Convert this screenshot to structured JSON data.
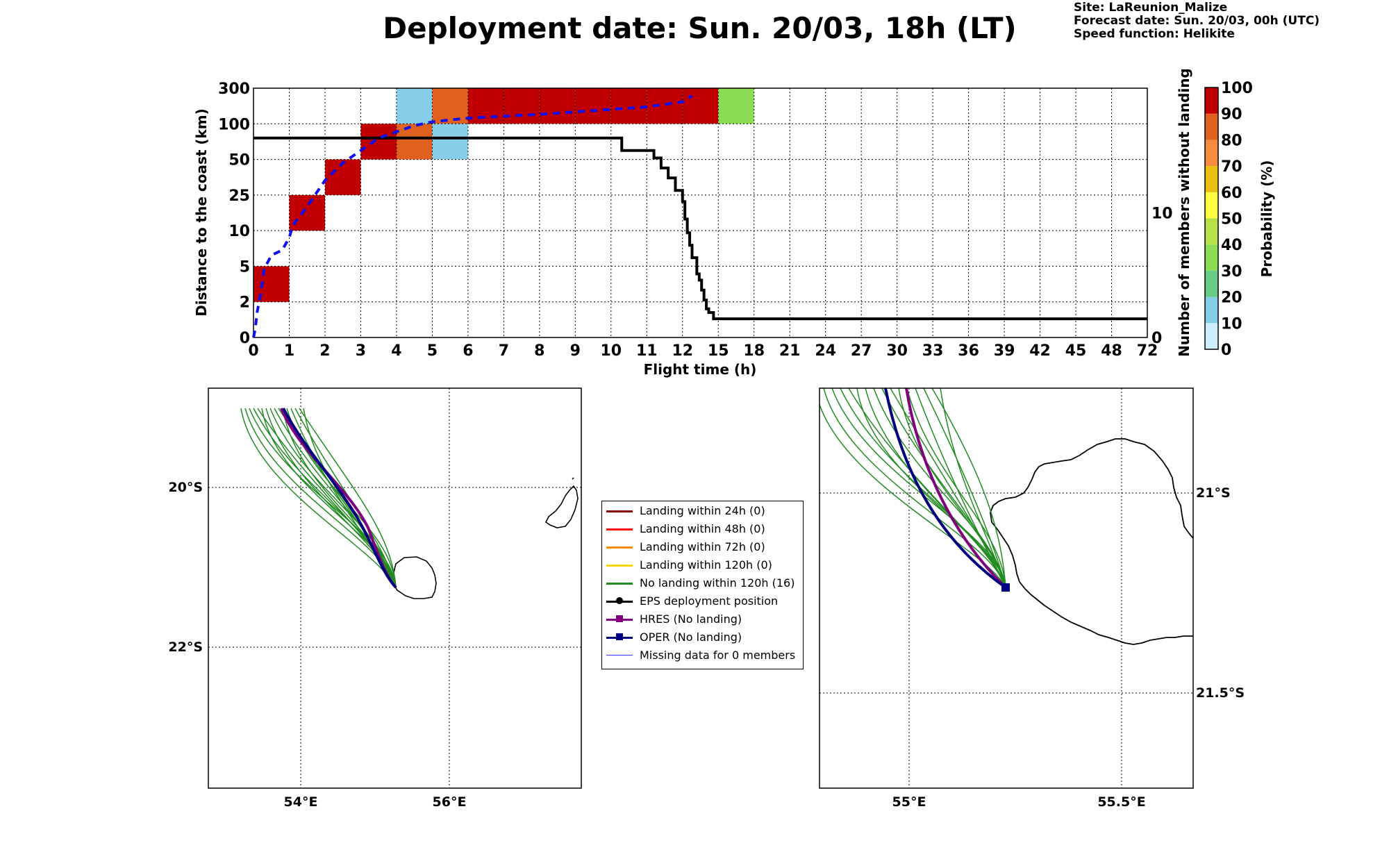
{
  "header": {
    "title": "Deployment date: Sun. 20/03, 18h (LT)",
    "site": "Site: LaReunion_Malize",
    "forecast_date": "Forecast date: Sun. 20/03, 00h (UTC)",
    "speed_function": "Speed function: Helikite"
  },
  "chart_data": [
    {
      "type": "heatmap",
      "title": "",
      "xlabel": "Flight time (h)",
      "ylabel": "Distance to the coast (km)",
      "ylabel_right": "Number of members without landing",
      "x_ticks": [
        "0",
        "1",
        "2",
        "3",
        "4",
        "5",
        "6",
        "7",
        "8",
        "9",
        "10",
        "11",
        "12",
        "15",
        "18",
        "21",
        "24",
        "27",
        "30",
        "33",
        "36",
        "39",
        "42",
        "45",
        "48",
        "72"
      ],
      "y_ticks": [
        "0",
        "2",
        "5",
        "10",
        "25",
        "50",
        "100",
        "300"
      ],
      "y2_ticks": [
        "0",
        "10"
      ],
      "y2_range": [
        0,
        20
      ],
      "grid": true,
      "cells": [
        {
          "x": "0-1",
          "y": "2-5",
          "prob": 95
        },
        {
          "x": "1-2",
          "y": "10-25",
          "prob": 95
        },
        {
          "x": "2-3",
          "y": "25-50",
          "prob": 95
        },
        {
          "x": "3-4",
          "y": "50-100",
          "prob": 95
        },
        {
          "x": "4-5",
          "y": "50-100",
          "prob": 85
        },
        {
          "x": "4-5",
          "y": "100-300",
          "prob": 15
        },
        {
          "x": "5-6",
          "y": "50-100",
          "prob": 15
        },
        {
          "x": "5-6",
          "y": "100-300",
          "prob": 85
        },
        {
          "x": "6-7",
          "y": "100-300",
          "prob": 95
        },
        {
          "x": "7-8",
          "y": "100-300",
          "prob": 95
        },
        {
          "x": "8-9",
          "y": "100-300",
          "prob": 95
        },
        {
          "x": "9-10",
          "y": "100-300",
          "prob": 95
        },
        {
          "x": "10-11",
          "y": "100-300",
          "prob": 95
        },
        {
          "x": "11-12",
          "y": "100-300",
          "prob": 95
        },
        {
          "x": "12-15",
          "y": "100-300",
          "prob": 95
        },
        {
          "x": "15-18",
          "y": "100-300",
          "prob": 35
        }
      ],
      "members_without_landing": [
        [
          0,
          16
        ],
        [
          10.1,
          16
        ],
        [
          10.3,
          15
        ],
        [
          11.0,
          15
        ],
        [
          11.2,
          14.4
        ],
        [
          11.4,
          13.6
        ],
        [
          11.6,
          12.8
        ],
        [
          11.8,
          11.8
        ],
        [
          12.0,
          10.9
        ],
        [
          12.2,
          9.5
        ],
        [
          12.4,
          8.4
        ],
        [
          12.6,
          7.4
        ],
        [
          12.8,
          6.4
        ],
        [
          13.0,
          6.4
        ],
        [
          13.2,
          5.1
        ],
        [
          13.4,
          4.6
        ],
        [
          13.6,
          3.8
        ],
        [
          13.8,
          3.0
        ],
        [
          14.0,
          2.3
        ],
        [
          14.2,
          2.0
        ],
        [
          14.6,
          1.5
        ],
        [
          15.3,
          1.5
        ],
        [
          72,
          1.5
        ]
      ],
      "mean_distance_curve": [
        [
          0,
          0
        ],
        [
          0.05,
          0.7
        ],
        [
          0.1,
          2
        ],
        [
          0.2,
          3.5
        ],
        [
          0.3,
          5.5
        ],
        [
          0.5,
          6.6
        ],
        [
          0.8,
          7
        ],
        [
          1.0,
          8
        ],
        [
          1.1,
          9
        ],
        [
          1.5,
          10.5
        ],
        [
          2,
          12.6
        ],
        [
          2.5,
          14
        ],
        [
          3,
          15
        ],
        [
          3.5,
          16
        ],
        [
          4,
          16.5
        ],
        [
          4.5,
          17
        ],
        [
          5,
          17.3
        ],
        [
          6,
          17.6
        ],
        [
          8,
          17.9
        ],
        [
          10,
          18.3
        ],
        [
          11,
          18.5
        ],
        [
          12,
          18.9
        ],
        [
          12.8,
          19.4
        ]
      ],
      "colorbar": {
        "label": "Probability (%)",
        "ticks": [
          "0",
          "10",
          "20",
          "30",
          "40",
          "50",
          "60",
          "70",
          "80",
          "90",
          "100"
        ],
        "colors": [
          "#cdeefe",
          "#87ceeb",
          "#66cc88",
          "#8ddc55",
          "#b5e04a",
          "#ffff40",
          "#e8c010",
          "#f58c40",
          "#e06020",
          "#c00000",
          "#6b001a"
        ]
      }
    },
    {
      "type": "map",
      "title": "",
      "lat_labels": [
        "20°S",
        "22°S"
      ],
      "lon_labels": [
        "54°E",
        "56°E"
      ]
    },
    {
      "type": "map",
      "title": "",
      "lat_labels": [
        "21°S",
        "21.5°S"
      ],
      "lon_labels": [
        "55°E",
        "55.5°E"
      ]
    }
  ],
  "legend": [
    {
      "label": "Landing within 24h (0)",
      "color": "#8b0000",
      "marker": ""
    },
    {
      "label": "Landing within 48h (0)",
      "color": "#ff1010",
      "marker": ""
    },
    {
      "label": "Landing within 72h (0)",
      "color": "#ff8c00",
      "marker": ""
    },
    {
      "label": "Landing within 120h (0)",
      "color": "#ffd700",
      "marker": ""
    },
    {
      "label": "No landing within 120h (16)",
      "color": "#228b22",
      "marker": ""
    },
    {
      "label": "EPS deployment position",
      "color": "#000000",
      "marker": "circle"
    },
    {
      "label": "HRES (No landing)",
      "color": "#800080",
      "marker": "square"
    },
    {
      "label": "OPER (No landing)",
      "color": "#000080",
      "marker": "square"
    },
    {
      "label": "Missing data for 0 members",
      "color": "#3333ff",
      "marker": "thin"
    }
  ]
}
